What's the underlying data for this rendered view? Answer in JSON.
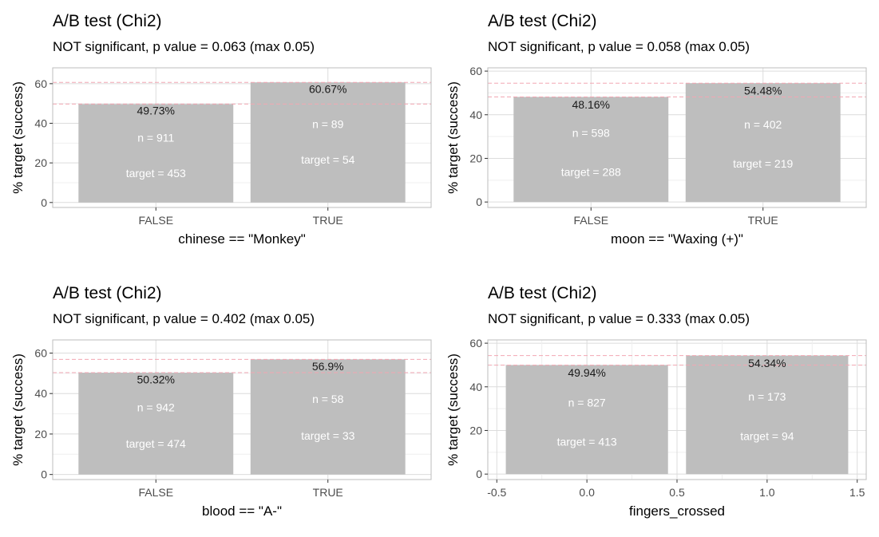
{
  "colors": {
    "bar": "#bebebe",
    "grid_major": "#dcdcdc",
    "grid_minor": "#efefef",
    "panel_border": "#bdbdbd",
    "ref_line": "#f2a7b3"
  },
  "chart_data": [
    {
      "type": "bar",
      "title": "A/B test (Chi2)",
      "subtitle": "NOT significant, p value = 0.063 (max 0.05)",
      "xlabel": "chinese == \"Monkey\"",
      "ylabel": "% target (success)",
      "x_axis": "categorical",
      "categories": [
        "FALSE",
        "TRUE"
      ],
      "values": [
        49.73,
        60.67
      ],
      "value_labels": [
        "49.73%",
        "60.67%"
      ],
      "n_labels": [
        "n = 911",
        "n =  89"
      ],
      "target_labels": [
        "target = 453",
        "target =  54"
      ],
      "ylim": [
        -2.5,
        68
      ],
      "yticks": [
        0,
        20,
        40,
        60
      ],
      "ytick_labels": [
        "0",
        "20",
        "40",
        "60"
      ],
      "grid": true
    },
    {
      "type": "bar",
      "title": "A/B test (Chi2)",
      "subtitle": "NOT significant, p value = 0.058 (max 0.05)",
      "xlabel": "moon == \"Waxing (+)\"",
      "ylabel": "% target (success)",
      "x_axis": "categorical",
      "categories": [
        "FALSE",
        "TRUE"
      ],
      "values": [
        48.16,
        54.48
      ],
      "value_labels": [
        "48.16%",
        "54.48%"
      ],
      "n_labels": [
        "n = 598",
        "n = 402"
      ],
      "target_labels": [
        "target = 288",
        "target = 219"
      ],
      "ylim": [
        -2.5,
        61.5
      ],
      "yticks": [
        0,
        20,
        40,
        60
      ],
      "ytick_labels": [
        "0",
        "20",
        "40",
        "60"
      ],
      "grid": true
    },
    {
      "type": "bar",
      "title": "A/B test (Chi2)",
      "subtitle": "NOT significant, p value = 0.402 (max 0.05)",
      "xlabel": "blood == \"A-\"",
      "ylabel": "% target (success)",
      "x_axis": "categorical",
      "categories": [
        "FALSE",
        "TRUE"
      ],
      "values": [
        50.32,
        56.9
      ],
      "value_labels": [
        "50.32%",
        "56.9%"
      ],
      "n_labels": [
        "n = 942",
        "n =  58"
      ],
      "target_labels": [
        "target = 474",
        "target =  33"
      ],
      "ylim": [
        -2.5,
        66.5
      ],
      "yticks": [
        0,
        20,
        40,
        60
      ],
      "ytick_labels": [
        "0",
        "20",
        "40",
        "60"
      ],
      "grid": true
    },
    {
      "type": "bar",
      "title": "A/B test (Chi2)",
      "subtitle": "NOT significant, p value = 0.333 (max 0.05)",
      "xlabel": "fingers_crossed",
      "ylabel": "% target (success)",
      "x_axis": "numeric",
      "x": [
        0,
        1
      ],
      "xlim": [
        -0.55,
        1.55
      ],
      "xticks": [
        -0.5,
        0,
        0.5,
        1,
        1.5
      ],
      "xtick_labels": [
        "-0.5",
        "0.0",
        "0.5",
        "1.0",
        "1.5"
      ],
      "values": [
        49.94,
        54.34
      ],
      "value_labels": [
        "49.94%",
        "54.34%"
      ],
      "n_labels": [
        "n = 827",
        "n = 173"
      ],
      "target_labels": [
        "target = 413",
        "target =  94"
      ],
      "ylim": [
        -2.5,
        61.5
      ],
      "yticks": [
        0,
        20,
        40,
        60
      ],
      "ytick_labels": [
        "0",
        "20",
        "40",
        "60"
      ],
      "grid": true
    }
  ]
}
